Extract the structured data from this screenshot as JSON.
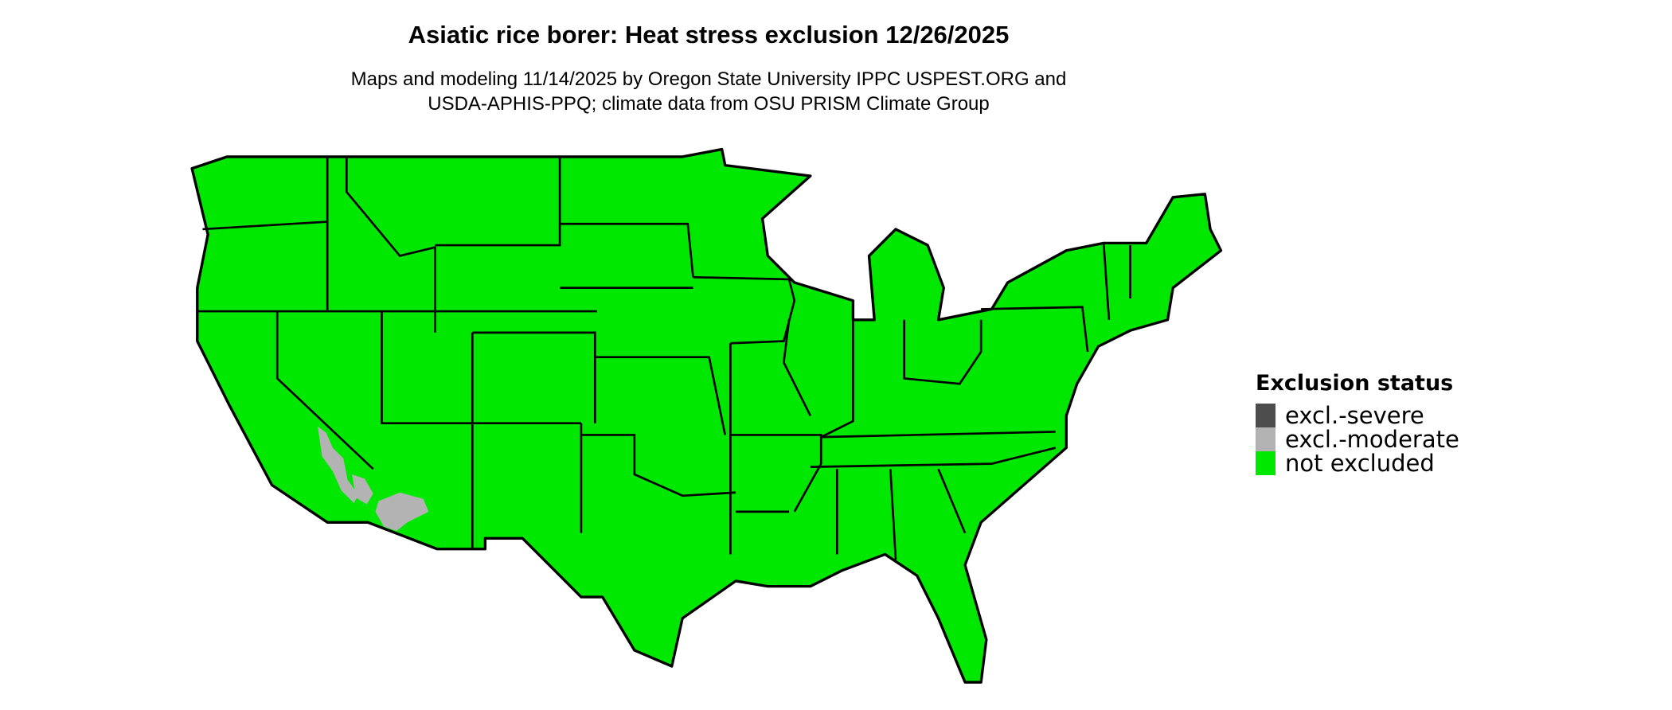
{
  "title": "Asiatic rice borer: Heat stress exclusion 12/26/2025",
  "subtitle_line1": "Maps and modeling 11/14/2025 by Oregon State University IPPC USPEST.ORG and",
  "subtitle_line2": "USDA-APHIS-PPQ; climate data from OSU PRISM Climate Group",
  "legend": {
    "title": "Exclusion status",
    "items": [
      {
        "label": "excl.-severe",
        "color": "#4d4d4d"
      },
      {
        "label": "excl.-moderate",
        "color": "#b3b3b3"
      },
      {
        "label": "not excluded",
        "color": "#00e800"
      }
    ]
  },
  "colors": {
    "land": "#00e800",
    "border": "#000000",
    "moderate": "#b3b3b3"
  }
}
